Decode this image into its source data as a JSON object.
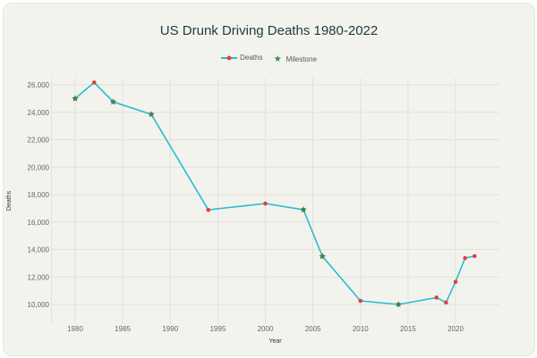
{
  "chart_data": {
    "type": "line",
    "title": "US Drunk Driving Deaths 1980-2022",
    "xlabel": "Year",
    "ylabel": "Deaths",
    "xlim": [
      1977.5,
      2024
    ],
    "ylim": [
      9000,
      27000
    ],
    "xticks": [
      1980,
      1985,
      1990,
      1995,
      2000,
      2005,
      2010,
      2015,
      2020
    ],
    "yticks": [
      10000,
      12000,
      14000,
      16000,
      18000,
      20000,
      22000,
      24000,
      26000
    ],
    "ytick_labels": [
      "10,000",
      "12,000",
      "14,000",
      "16,000",
      "18,000",
      "20,000",
      "22,000",
      "24,000",
      "26,000"
    ],
    "grid": true,
    "legend": "top",
    "series": [
      {
        "name": "Deaths",
        "color": "#2bbcd4",
        "marker_color": "#e04040",
        "x": [
          1980,
          1982,
          1984,
          1988,
          1994,
          2000,
          2004,
          2006,
          2010,
          2014,
          2018,
          2019,
          2020,
          2021,
          2022
        ],
        "y": [
          25000,
          26170,
          24760,
          23850,
          16890,
          17350,
          16900,
          13500,
          10260,
          10000,
          10500,
          10140,
          11650,
          13380,
          13520
        ]
      },
      {
        "name": "Milestone",
        "color": "#2e8b57",
        "x": [
          1980,
          1984,
          1988,
          2004,
          2006,
          2014
        ],
        "y": [
          25000,
          24760,
          23850,
          16900,
          13500,
          10000
        ]
      }
    ]
  }
}
